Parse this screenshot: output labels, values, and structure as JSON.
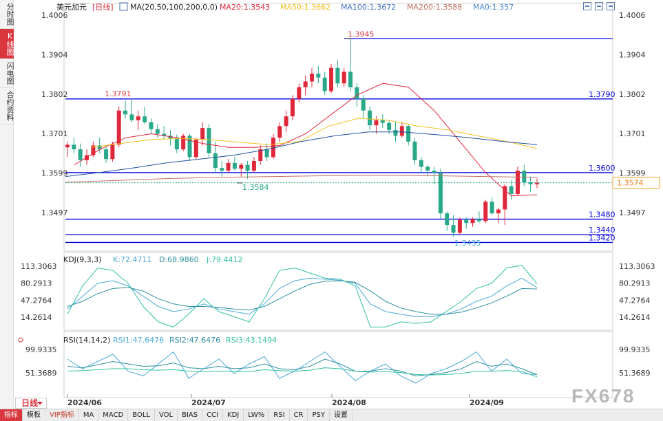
{
  "sidebar": [
    {
      "label": "分时图",
      "active": false
    },
    {
      "label": "K线图",
      "active": true
    },
    {
      "label": "闪电图",
      "active": false
    },
    {
      "label": "合约资料",
      "active": false
    }
  ],
  "header": {
    "symbol": "美元加元",
    "period": "[日线]",
    "ma": "MA(20,50,100,200,0,0)",
    "ma20": "MA20:1.3543",
    "ma50": "MA50:1.3662",
    "ma100": "MA100:1.3672",
    "ma200": "MA200:1.3588",
    "ma0": "MA0:1.357"
  },
  "kdj": {
    "title": "KDJ(9,3,3)",
    "k": "K:72.4711",
    "d": "D:68.9860",
    "j": "J:79.4412"
  },
  "rsi": {
    "title": "RSI(14,14,2)",
    "rsi1": "RSI1:47.6476",
    "rsi2": "RSI2:47.6476",
    "rsi3": "RSI3:43.1494"
  },
  "colors": {
    "up": "#e0283c",
    "down": "#2aa88a",
    "ma20": "#e0283c",
    "ma50": "#f0c020",
    "ma100": "#2050a0",
    "ma200": "#c07060",
    "level": "#0000dd",
    "kdj_k": "#4aa8d8",
    "kdj_d": "#2e8fa0",
    "kdj_j": "#30c0a0"
  },
  "chart_data": {
    "type": "candlestick",
    "price_ticks": [
      "1.4006",
      "1.3904",
      "1.3802",
      "1.3701",
      "1.3599",
      "1.3497"
    ],
    "price_range": [
      1.342,
      1.4006
    ],
    "current_price": "1.3574",
    "horizontal_levels": [
      "1.3790",
      "1.3600",
      "1.3480",
      "1.3440",
      "1.3420"
    ],
    "annotations": [
      {
        "text": "1.3945",
        "value": 1.3945
      },
      {
        "text": "1.3791",
        "value": 1.3791
      },
      {
        "text": "1.3584",
        "value": 1.3584
      },
      {
        "text": "1.3435",
        "value": 1.3435
      }
    ],
    "x_labels": [
      "2024/06",
      "2024/07",
      "2024/08",
      "2024/09"
    ],
    "candles": [
      [
        1.3665,
        1.368,
        1.364,
        1.3672
      ],
      [
        1.3672,
        1.369,
        1.365,
        1.366
      ],
      [
        1.366,
        1.3675,
        1.3615,
        1.3632
      ],
      [
        1.3632,
        1.366,
        1.362,
        1.3645
      ],
      [
        1.3645,
        1.368,
        1.364,
        1.367
      ],
      [
        1.367,
        1.369,
        1.365,
        1.366
      ],
      [
        1.366,
        1.3668,
        1.3625,
        1.3635
      ],
      [
        1.3635,
        1.368,
        1.3628,
        1.3672
      ],
      [
        1.3672,
        1.377,
        1.3665,
        1.376
      ],
      [
        1.376,
        1.3785,
        1.374,
        1.375
      ],
      [
        1.375,
        1.3791,
        1.373,
        1.3735
      ],
      [
        1.3735,
        1.376,
        1.371,
        1.3745
      ],
      [
        1.3745,
        1.377,
        1.3725,
        1.373
      ],
      [
        1.373,
        1.374,
        1.37,
        1.3712
      ],
      [
        1.3712,
        1.3725,
        1.369,
        1.37
      ],
      [
        1.37,
        1.372,
        1.3685,
        1.3695
      ],
      [
        1.3695,
        1.371,
        1.367,
        1.3688
      ],
      [
        1.3688,
        1.3698,
        1.365,
        1.366
      ],
      [
        1.366,
        1.37,
        1.3655,
        1.3695
      ],
      [
        1.3695,
        1.37,
        1.363,
        1.364
      ],
      [
        1.364,
        1.369,
        1.3635,
        1.3685
      ],
      [
        1.3685,
        1.373,
        1.367,
        1.3715
      ],
      [
        1.3715,
        1.3725,
        1.364,
        1.365
      ],
      [
        1.365,
        1.368,
        1.36,
        1.3612
      ],
      [
        1.3612,
        1.363,
        1.359,
        1.3605
      ],
      [
        1.3605,
        1.3635,
        1.36,
        1.3625
      ],
      [
        1.3625,
        1.364,
        1.3605,
        1.361
      ],
      [
        1.361,
        1.3625,
        1.359,
        1.362
      ],
      [
        1.362,
        1.363,
        1.3584,
        1.3605
      ],
      [
        1.3605,
        1.364,
        1.36,
        1.363
      ],
      [
        1.363,
        1.367,
        1.362,
        1.366
      ],
      [
        1.366,
        1.3675,
        1.363,
        1.364
      ],
      [
        1.364,
        1.37,
        1.3635,
        1.369
      ],
      [
        1.369,
        1.373,
        1.368,
        1.372
      ],
      [
        1.372,
        1.376,
        1.3705,
        1.3745
      ],
      [
        1.3745,
        1.38,
        1.3735,
        1.379
      ],
      [
        1.379,
        1.383,
        1.378,
        1.382
      ],
      [
        1.382,
        1.385,
        1.38,
        1.3835
      ],
      [
        1.3835,
        1.387,
        1.382,
        1.3855
      ],
      [
        1.3855,
        1.3875,
        1.383,
        1.3845
      ],
      [
        1.3845,
        1.386,
        1.38,
        1.381
      ],
      [
        1.381,
        1.388,
        1.3805,
        1.387
      ],
      [
        1.387,
        1.389,
        1.382,
        1.383
      ],
      [
        1.383,
        1.387,
        1.382,
        1.386
      ],
      [
        1.386,
        1.3945,
        1.381,
        1.382
      ],
      [
        1.382,
        1.383,
        1.377,
        1.379
      ],
      [
        1.379,
        1.38,
        1.374,
        1.376
      ],
      [
        1.376,
        1.377,
        1.371,
        1.3722
      ],
      [
        1.3722,
        1.3745,
        1.37,
        1.3735
      ],
      [
        1.3735,
        1.375,
        1.3715,
        1.3728
      ],
      [
        1.3728,
        1.3735,
        1.37,
        1.371
      ],
      [
        1.371,
        1.373,
        1.368,
        1.3695
      ],
      [
        1.3695,
        1.373,
        1.369,
        1.372
      ],
      [
        1.372,
        1.3725,
        1.367,
        1.368
      ],
      [
        1.368,
        1.369,
        1.362,
        1.3632
      ],
      [
        1.3632,
        1.364,
        1.36,
        1.3615
      ],
      [
        1.3615,
        1.362,
        1.359,
        1.3605
      ],
      [
        1.3605,
        1.3615,
        1.357,
        1.36
      ],
      [
        1.36,
        1.361,
        1.348,
        1.3495
      ],
      [
        1.3495,
        1.35,
        1.345,
        1.3465
      ],
      [
        1.3465,
        1.349,
        1.3435,
        1.3445
      ],
      [
        1.3445,
        1.3485,
        1.344,
        1.3478
      ],
      [
        1.3478,
        1.3485,
        1.3455,
        1.347
      ],
      [
        1.347,
        1.3485,
        1.346,
        1.348
      ],
      [
        1.348,
        1.35,
        1.347,
        1.3475
      ],
      [
        1.3475,
        1.353,
        1.347,
        1.3525
      ],
      [
        1.3525,
        1.3535,
        1.349,
        1.3495
      ],
      [
        1.3495,
        1.351,
        1.347,
        1.3505
      ],
      [
        1.3505,
        1.357,
        1.3465,
        1.3565
      ],
      [
        1.3565,
        1.358,
        1.353,
        1.3545
      ],
      [
        1.3545,
        1.3615,
        1.354,
        1.3605
      ],
      [
        1.3605,
        1.362,
        1.3565,
        1.3575
      ],
      [
        1.3575,
        1.359,
        1.355,
        1.357
      ],
      [
        1.357,
        1.3585,
        1.356,
        1.3574
      ]
    ],
    "ma_series": [
      {
        "name": "MA20",
        "values": [
          1.362,
          1.366,
          1.369,
          1.37,
          1.369,
          1.3675,
          1.3665,
          1.3665,
          1.367,
          1.37,
          1.375,
          1.38,
          1.383,
          1.382,
          1.376,
          1.368,
          1.36,
          1.354,
          1.3543
        ]
      },
      {
        "name": "MA50",
        "values": [
          1.3665,
          1.3675,
          1.3685,
          1.3688,
          1.3685,
          1.3678,
          1.3672,
          1.368,
          1.372,
          1.374,
          1.3735,
          1.372,
          1.371,
          1.3695,
          1.368,
          1.3662
        ]
      },
      {
        "name": "MA100",
        "values": [
          1.359,
          1.36,
          1.3612,
          1.3625,
          1.3635,
          1.3645,
          1.366,
          1.368,
          1.3695,
          1.3705,
          1.3705,
          1.3698,
          1.369,
          1.368,
          1.3672
        ]
      },
      {
        "name": "MA200",
        "values": [
          1.3575,
          1.358,
          1.3585,
          1.3588,
          1.359,
          1.3592,
          1.3593,
          1.3592,
          1.359,
          1.3588
        ]
      }
    ],
    "kdj_ticks": [
      "113.3063",
      "80.2913",
      "47.2764",
      "14.2614"
    ],
    "kdj_range": [
      -5,
      120
    ],
    "kdj_series": [
      {
        "name": "K",
        "values": [
          30,
          55,
          80,
          85,
          75,
          55,
          35,
          25,
          30,
          40,
          30,
          25,
          20,
          40,
          70,
          85,
          90,
          88,
          86,
          80,
          40,
          25,
          20,
          15,
          15,
          20,
          30,
          45,
          55,
          75,
          90,
          72
        ]
      },
      {
        "name": "D",
        "values": [
          35,
          45,
          60,
          70,
          72,
          65,
          50,
          40,
          35,
          35,
          33,
          30,
          28,
          35,
          50,
          65,
          78,
          84,
          85,
          82,
          65,
          45,
          32,
          25,
          20,
          20,
          24,
          32,
          42,
          55,
          70,
          69
        ]
      },
      {
        "name": "J",
        "values": [
          20,
          75,
          110,
          105,
          80,
          35,
          5,
          -5,
          20,
          50,
          25,
          15,
          5,
          50,
          105,
          110,
          100,
          90,
          88,
          75,
          -5,
          -5,
          5,
          2,
          5,
          25,
          45,
          70,
          80,
          110,
          115,
          79
        ]
      }
    ],
    "rsi_ticks": [
      "99.9335",
      "51.3689"
    ],
    "rsi_range": [
      20,
      110
    ],
    "rsi_series": [
      {
        "name": "RSI1",
        "values": [
          80,
          60,
          75,
          90,
          55,
          45,
          70,
          95,
          40,
          60,
          80,
          50,
          70,
          85,
          40,
          55,
          75,
          95,
          65,
          35,
          55,
          70,
          45,
          30,
          50,
          60,
          75,
          95,
          55,
          80,
          50,
          47.6
        ]
      },
      {
        "name": "RSI2",
        "values": [
          65,
          62,
          68,
          75,
          70,
          65,
          66,
          72,
          62,
          60,
          65,
          60,
          62,
          70,
          60,
          58,
          65,
          80,
          70,
          55,
          55,
          60,
          55,
          45,
          48,
          52,
          60,
          75,
          65,
          70,
          60,
          47.6
        ]
      },
      {
        "name": "RSI3",
        "values": [
          55,
          56,
          58,
          60,
          60,
          58,
          57,
          58,
          55,
          54,
          55,
          54,
          54,
          58,
          56,
          55,
          57,
          62,
          60,
          55,
          53,
          54,
          52,
          48,
          47,
          48,
          50,
          55,
          55,
          56,
          54,
          43.1
        ]
      }
    ]
  },
  "toolbar": [
    "指标",
    "模板",
    "VIP指标",
    "MA",
    "MACD",
    "BOLL",
    "VOL",
    "BIAS",
    "CCI",
    "KDJ",
    "LW%",
    "RSI",
    "CR",
    "PSY",
    "设置"
  ],
  "period_label": "日线",
  "watermark": "FX678"
}
